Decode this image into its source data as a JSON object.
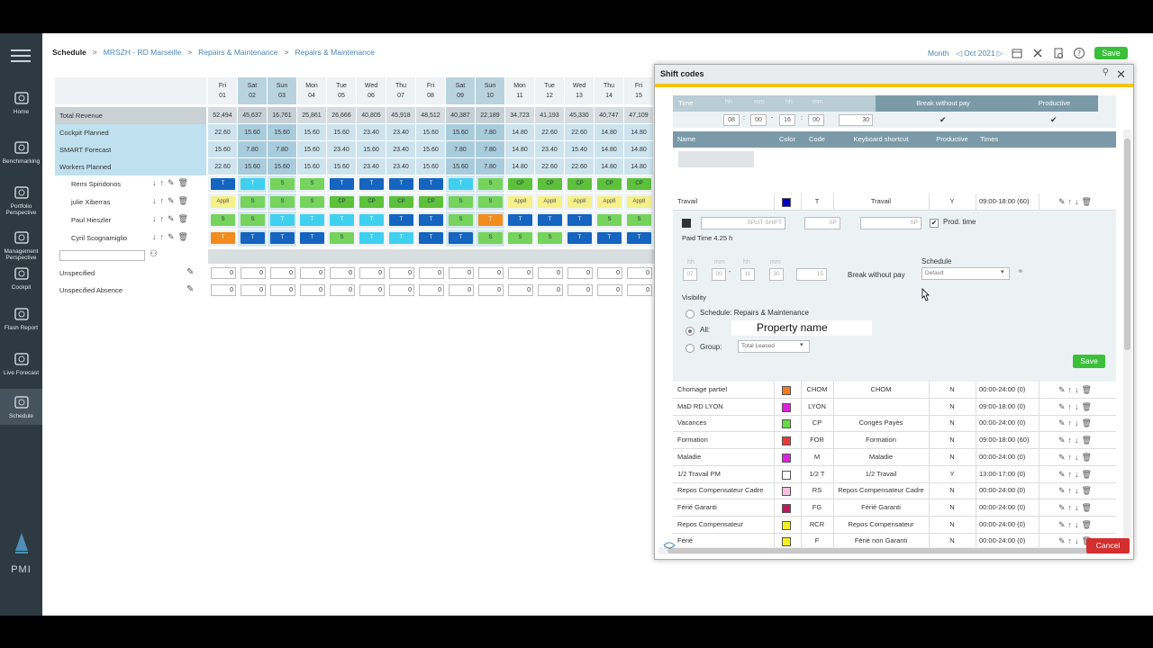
{
  "breadcrumb": [
    "Schedule",
    "MRSZH - RD Marseille",
    "Repairs & Maintenance",
    "Repairs & Maintenance"
  ],
  "topbar": {
    "view": "Month",
    "period": "Oct 2021",
    "save_label": "Save"
  },
  "sidebar": {
    "items": [
      {
        "label": "Home",
        "icon": "home-icon"
      },
      {
        "label": "Benchmarking",
        "icon": "benchmark-icon"
      },
      {
        "label": "Portfolio Perspective",
        "icon": "portfolio-icon"
      },
      {
        "label": "Management Perspective",
        "icon": "management-icon"
      },
      {
        "label": "Cockpit",
        "icon": "cockpit-icon"
      },
      {
        "label": "Flash Report",
        "icon": "flash-report-icon"
      },
      {
        "label": "Live Forecast",
        "icon": "live-forecast-icon"
      },
      {
        "label": "Schedule",
        "icon": "schedule-icon"
      }
    ],
    "brand": "PMI"
  },
  "days": [
    {
      "d": "Fri",
      "n": "01",
      "w": false
    },
    {
      "d": "Sat",
      "n": "02",
      "w": true
    },
    {
      "d": "Sun",
      "n": "03",
      "w": true
    },
    {
      "d": "Mon",
      "n": "04",
      "w": false
    },
    {
      "d": "Tue",
      "n": "05",
      "w": false
    },
    {
      "d": "Wed",
      "n": "06",
      "w": false
    },
    {
      "d": "Thu",
      "n": "07",
      "w": false
    },
    {
      "d": "Fri",
      "n": "08",
      "w": false
    },
    {
      "d": "Sat",
      "n": "09",
      "w": true
    },
    {
      "d": "Sun",
      "n": "10",
      "w": true
    },
    {
      "d": "Mon",
      "n": "11",
      "w": false
    },
    {
      "d": "Tue",
      "n": "12",
      "w": false
    },
    {
      "d": "Wed",
      "n": "13",
      "w": false
    },
    {
      "d": "Thu",
      "n": "14",
      "w": false
    },
    {
      "d": "Fri",
      "n": "15",
      "w": false
    }
  ],
  "metrics": [
    {
      "label": "Total Revenue",
      "values": [
        "52,494",
        "45,637",
        "16,761",
        "25,861",
        "26,666",
        "40,805",
        "45,918",
        "48,512",
        "40,387",
        "22,189",
        "34,723",
        "41,193",
        "45,330",
        "40,747",
        "47,109"
      ]
    },
    {
      "label": "Cockpit Planned",
      "values": [
        "22.60",
        "15.60",
        "15.60",
        "15.60",
        "15.60",
        "23.40",
        "23.40",
        "15.60",
        "15.60",
        "7.80",
        "14.80",
        "22.60",
        "22.60",
        "14.80",
        "14.80"
      ]
    },
    {
      "label": "SMART Forecast",
      "values": [
        "15.60",
        "7.80",
        "7.80",
        "15.60",
        "23.40",
        "15.60",
        "23.40",
        "15.60",
        "7.80",
        "7.80",
        "14.80",
        "23.40",
        "15.40",
        "14.80",
        "14.80"
      ]
    },
    {
      "label": "Workers Planned",
      "values": [
        "22.60",
        "15.60",
        "15.60",
        "15.60",
        "15.60",
        "23.40",
        "23.40",
        "15.60",
        "15.60",
        "7.80",
        "14.80",
        "22.60",
        "22.60",
        "14.80",
        "14.80"
      ]
    }
  ],
  "employees": [
    {
      "name": "Remi Spiridonos",
      "shifts": [
        "T",
        "T",
        "S",
        "S",
        "T",
        "T",
        "T",
        "T",
        "T",
        "S",
        "CP",
        "CP",
        "CP",
        "CP",
        "CP"
      ]
    },
    {
      "name": "julie Xiberras",
      "shifts": [
        "App8",
        "S",
        "S",
        "S",
        "CP",
        "CP",
        "CP",
        "CP",
        "S",
        "S",
        "App8",
        "App8",
        "App8",
        "App8",
        "App8"
      ]
    },
    {
      "name": "Paul Hieszler",
      "shifts": [
        "S",
        "S",
        "T",
        "T",
        "T",
        "T",
        "T",
        "T",
        "S",
        "T",
        "T",
        "T",
        "T",
        "S",
        "S"
      ]
    },
    {
      "name": "Cyril Scognamiglio",
      "shifts": [
        "T",
        "T",
        "T",
        "T",
        "S",
        "T",
        "T",
        "T",
        "T",
        "S",
        "S",
        "S",
        "T",
        "T",
        "T"
      ]
    }
  ],
  "shift_colors": {
    "T": "#1565c0",
    "S": "#76d35c",
    "CP": "#5dc13b",
    "App8": "#f5f08a",
    "Tlight": "#3fd0f0",
    "Torange": "#f28c1e"
  },
  "unspecified": [
    {
      "label": "Unspecified"
    },
    {
      "label": "Unspecified Absence"
    }
  ],
  "zero": "0",
  "dialog": {
    "title": "Shift codes",
    "time_header": "Time",
    "time_hh": "hh",
    "time_mm": "mm",
    "top_values": [
      "08",
      "00",
      "16",
      "00",
      "30"
    ],
    "break_without_pay": "Break without pay",
    "productive": "Productive",
    "columns": [
      "Name",
      "Color",
      "Code",
      "Keyboard shortcut",
      "Productive",
      "Times"
    ],
    "edit_row": {
      "name": "Travail",
      "color": "#0000cc",
      "code": "T",
      "shortcut": "Travail",
      "productive": "Y",
      "times": "09:00-18:00 (60)"
    },
    "edit_panel": {
      "split_placeholder": "SPLIT SHIFT",
      "sp1": "SP",
      "sp2": "SP",
      "prod_time": "Prod. time",
      "paid_time": "Paid Time 4.25 h",
      "times": [
        "07",
        "00",
        "11",
        "30",
        "15"
      ],
      "schedule_label": "Schedule",
      "schedule_value": "Default",
      "break_label": "Break without pay",
      "visibility": "Visibility",
      "vis_schedule": "Schedule: Repairs & Maintenance",
      "vis_all": "All:",
      "property_name": "Property name",
      "vis_group": "Group:",
      "group_value": "Total Leased",
      "save": "Save"
    },
    "rows": [
      {
        "name": "Chomage partiel",
        "color": "#f47a20",
        "code": "CHOM",
        "shortcut": "CHOM",
        "productive": "N",
        "times": "00:00-24:00 (0)"
      },
      {
        "name": "MàD RD LYON",
        "color": "#e020e0",
        "code": "LYON",
        "shortcut": "",
        "productive": "N",
        "times": "09:00-18:00 (0)"
      },
      {
        "name": "Vacances",
        "color": "#66dd44",
        "code": "CP",
        "shortcut": "Congès Payès",
        "productive": "N",
        "times": "00:00-24:00 (0)"
      },
      {
        "name": "Formation",
        "color": "#e83a3a",
        "code": "FOR",
        "shortcut": "Formation",
        "productive": "N",
        "times": "09:00-18:00 (60)"
      },
      {
        "name": "Maladie",
        "color": "#e020e0",
        "code": "M",
        "shortcut": "Maladie",
        "productive": "N",
        "times": "00:00-24:00 (0)"
      },
      {
        "name": "1/2 Travail PM",
        "color": "#ffffff",
        "code": "1/2 T",
        "shortcut": "1/2 Travail",
        "productive": "Y",
        "times": "13:00-17:00 (0)"
      },
      {
        "name": "Repos Compensateur Cadre",
        "color": "#f8c0e0",
        "code": "RS",
        "shortcut": "Repos Compensateur Cadre",
        "productive": "N",
        "times": "00:00-24:00 (0)"
      },
      {
        "name": "Férié Garanti",
        "color": "#c0185a",
        "code": "FG",
        "shortcut": "Férié Garanti",
        "productive": "N",
        "times": "00:00-24:00 (0)"
      },
      {
        "name": "Repos Compensateur",
        "color": "#f4f020",
        "code": "RCR",
        "shortcut": "Repos Compensateur",
        "productive": "N",
        "times": "00:00-24:00 (0)"
      },
      {
        "name": "Férié",
        "color": "#f4f020",
        "code": "F",
        "shortcut": "Férié non Garanti",
        "productive": "N",
        "times": "00:00-24:00 (0)"
      }
    ],
    "cancel": "Cancel"
  }
}
